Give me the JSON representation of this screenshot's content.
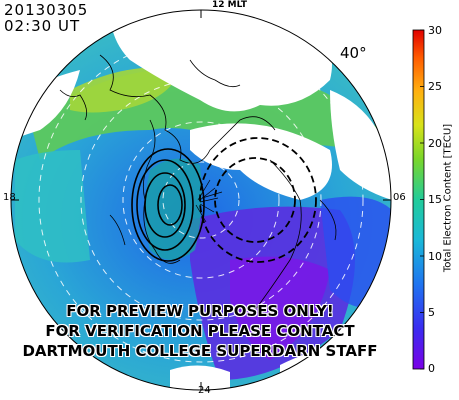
{
  "header": {
    "date": "20130305",
    "time": "02:30 UT"
  },
  "mlt_labels": {
    "top": "12 MLT",
    "bottom": "24",
    "left": "18",
    "right": "06"
  },
  "latitude_label": "40°",
  "colorbar": {
    "title": "Total Electron Content [TECU]",
    "ticks": [
      "30",
      "25",
      "20",
      "15",
      "10",
      "5",
      "0"
    ],
    "range": [
      0,
      30
    ]
  },
  "watermark": [
    "FOR PREVIEW PURPOSES ONLY!",
    "FOR VERIFICATION PLEASE CONTACT",
    "DARTMOUTH COLLEGE SUPERDARN STAFF"
  ]
}
